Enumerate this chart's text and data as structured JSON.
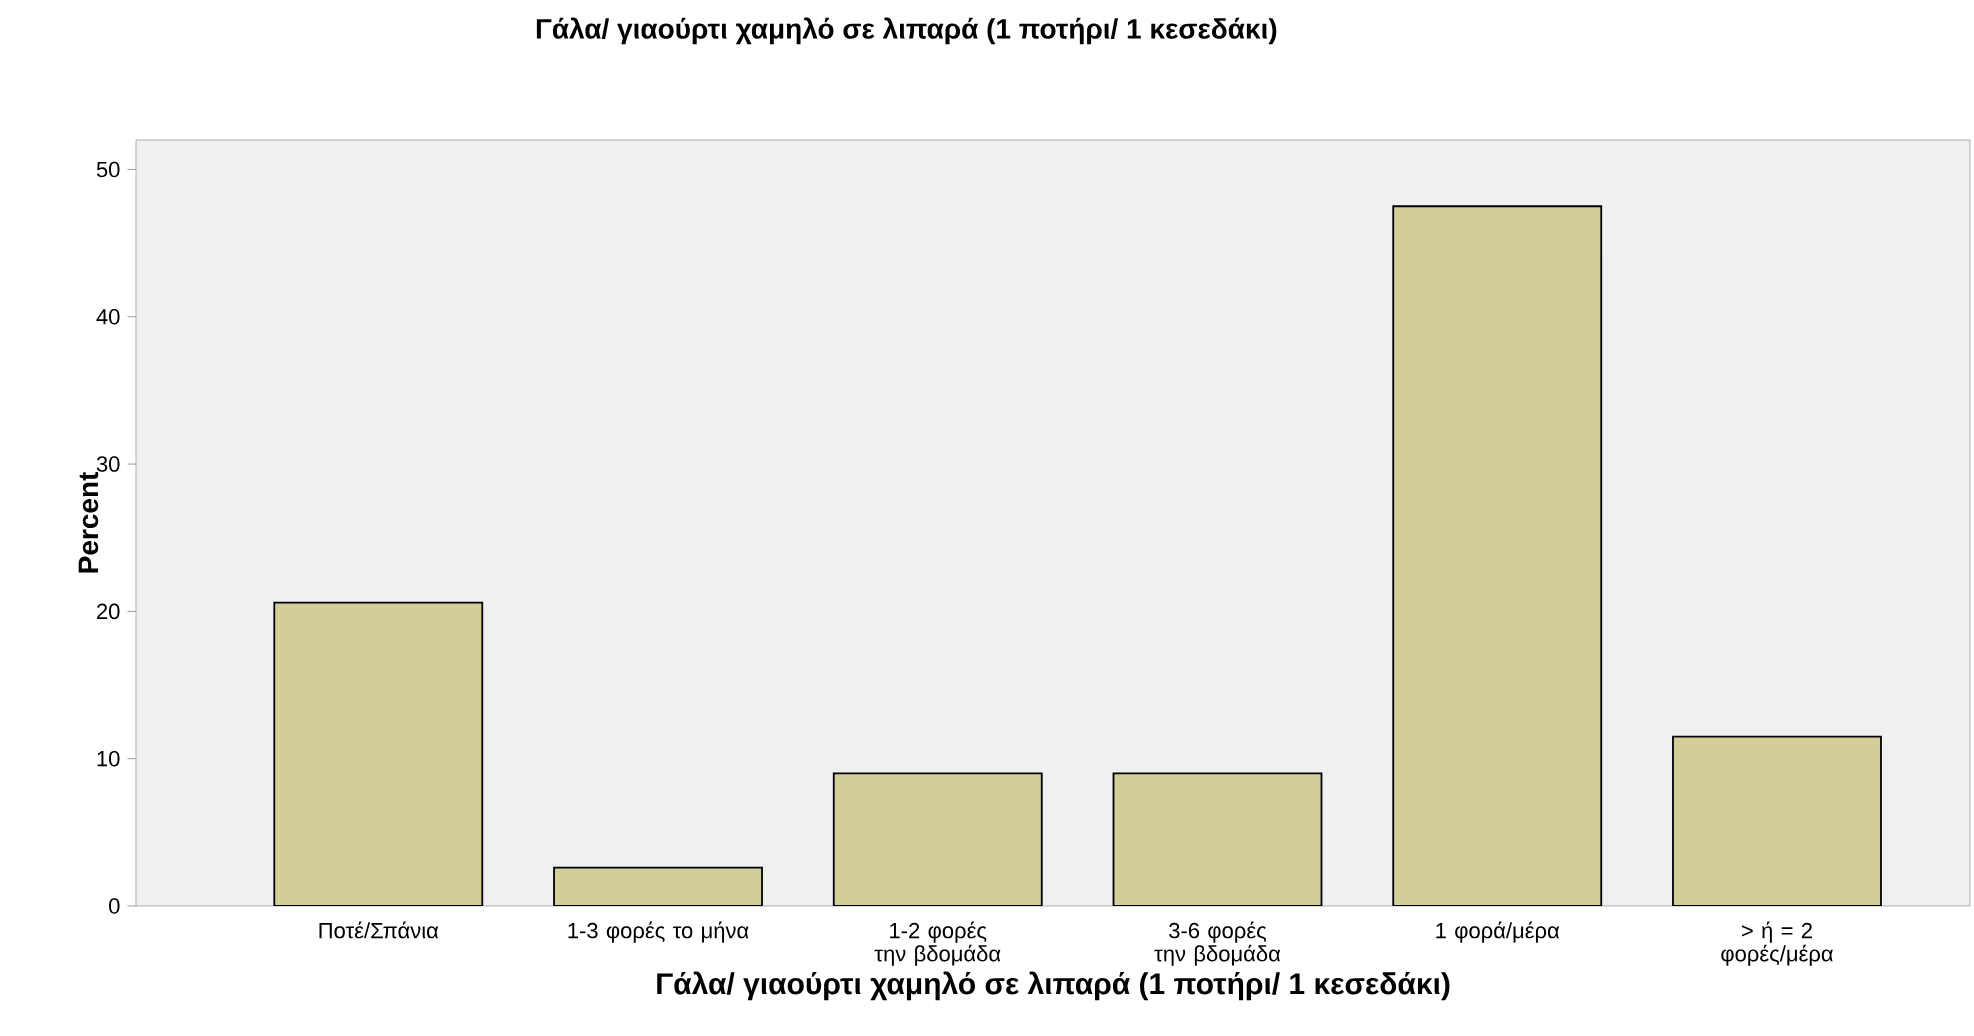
{
  "chart_data": {
    "type": "bar",
    "title": "Γάλα/ γιαούρτι χαμηλό σε λιπαρά (1 ποτήρι/ 1 κεσεδάκι)",
    "xlabel": "Γάλα/ γιαούρτι χαμηλό σε λιπαρά (1 ποτήρι/ 1 κεσεδάκι)",
    "ylabel": "Percent",
    "categories": [
      "Ποτέ/Σπάνια",
      "1-3 φορές το μήνα",
      "1-2 φορές την βδομάδα",
      "3-6 φορές την βδομάδα",
      "1 φορά/μέρα",
      "> ή = 2 φορές/μέρα"
    ],
    "values": [
      20.6,
      2.6,
      9.0,
      9.0,
      47.5,
      11.5
    ],
    "color": "#d3ce97",
    "ylim": [
      0,
      52
    ],
    "yticks": [
      0,
      10,
      20,
      30,
      40,
      50
    ],
    "grid": false
  }
}
